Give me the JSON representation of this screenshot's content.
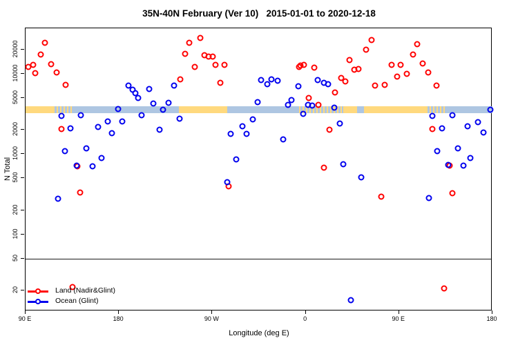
{
  "title": "35N-40N February (Ver 10)   2015-01-01 to 2020-12-18",
  "legend": {
    "items": [
      {
        "label": "Land (Nadir&Glint)",
        "color": "#FF0000"
      },
      {
        "label": "Ocean (Glint)",
        "color": "#0000EE"
      }
    ]
  },
  "chart_data": {
    "type": "scatter",
    "title": "35N-40N February (Ver 10)   2015-01-01 to 2020-12-18",
    "xlabel": "Longitude (deg E)",
    "ylabel": "N Total",
    "y_scale": "log",
    "y_axis": {
      "range": [
        11,
        37000
      ],
      "ticks": [
        20000,
        10000,
        5000,
        2000,
        1000,
        500,
        200,
        100,
        50,
        20
      ]
    },
    "x_axis": {
      "range_deg_east_continuous": [
        90,
        540
      ],
      "ticks": [
        {
          "deg": 90,
          "label": "90 E"
        },
        {
          "deg": 180,
          "label": "180"
        },
        {
          "deg": 270,
          "label": "90 W"
        },
        {
          "deg": 360,
          "label": "0"
        },
        {
          "deg": 450,
          "label": "90 E"
        },
        {
          "deg": 540,
          "label": "180"
        }
      ]
    },
    "grid": false,
    "legend_position": "bottom-left",
    "reference_line_value": 50,
    "band": {
      "description": "land/ocean strip along 35N-40N",
      "value_range": [
        3240,
        3980
      ],
      "land_color": "#FFD97E",
      "ocean_color": "#AEC6E2",
      "segments": [
        {
          "from": 90.0,
          "to": 118.0,
          "type": "land"
        },
        {
          "from": 118.0,
          "to": 136.0,
          "type": "mixed"
        },
        {
          "from": 136.0,
          "to": 238.0,
          "type": "ocean"
        },
        {
          "from": 238.0,
          "to": 284.7,
          "type": "land"
        },
        {
          "from": 284.7,
          "to": 351.3,
          "type": "ocean"
        },
        {
          "from": 351.3,
          "to": 396.0,
          "type": "mixed"
        },
        {
          "from": 396.0,
          "to": 409.3,
          "type": "land"
        },
        {
          "from": 409.3,
          "to": 416.0,
          "type": "ocean"
        },
        {
          "from": 416.0,
          "to": 477.3,
          "type": "land"
        },
        {
          "from": 477.3,
          "to": 494.7,
          "type": "mixed"
        },
        {
          "from": 494.7,
          "to": 540.0,
          "type": "ocean"
        }
      ]
    },
    "series": [
      {
        "name": "Land (Nadir&Glint)",
        "color": "#FF0000",
        "marker": "open-circle",
        "points": [
          [
            108.7,
            24200
          ],
          [
            104.7,
            17600
          ],
          [
            92.7,
            12300
          ],
          [
            97.3,
            13000
          ],
          [
            99.3,
            10200
          ],
          [
            114.7,
            13300
          ],
          [
            120.0,
            10400
          ],
          [
            128.7,
            7300
          ],
          [
            124.7,
            2070
          ],
          [
            140.0,
            710
          ],
          [
            142.7,
            332
          ],
          [
            135.3,
            22
          ],
          [
            239.3,
            8600
          ],
          [
            244.0,
            17900
          ],
          [
            248.0,
            24600
          ],
          [
            258.7,
            27800
          ],
          [
            262.7,
            17200
          ],
          [
            266.7,
            16300
          ],
          [
            270.7,
            16300
          ],
          [
            253.3,
            12300
          ],
          [
            273.3,
            13000
          ],
          [
            282.0,
            13000
          ],
          [
            278.0,
            7800
          ],
          [
            286.0,
            400
          ],
          [
            353.3,
            12100
          ],
          [
            354.7,
            12800
          ],
          [
            358.0,
            13000
          ],
          [
            368.0,
            11900
          ],
          [
            362.7,
            5020
          ],
          [
            372.0,
            4130
          ],
          [
            382.7,
            2030
          ],
          [
            377.3,
            680
          ],
          [
            388.0,
            5870
          ],
          [
            394.0,
            8900
          ],
          [
            398.0,
            8050
          ],
          [
            402.0,
            15000
          ],
          [
            406.7,
            11300
          ],
          [
            410.7,
            11500
          ],
          [
            418.0,
            19900
          ],
          [
            423.3,
            26300
          ],
          [
            426.7,
            7150
          ],
          [
            436.0,
            7300
          ],
          [
            432.7,
            294
          ],
          [
            442.7,
            13000
          ],
          [
            451.3,
            13000
          ],
          [
            448.0,
            9300
          ],
          [
            457.3,
            10100
          ],
          [
            463.3,
            17600
          ],
          [
            467.3,
            23400
          ],
          [
            472.7,
            13600
          ],
          [
            478.0,
            10400
          ],
          [
            486.0,
            7150
          ],
          [
            482.0,
            2070
          ],
          [
            498.7,
            720
          ],
          [
            501.3,
            326
          ],
          [
            493.3,
            21
          ]
        ]
      },
      {
        "name": "Ocean (Glint)",
        "color": "#0000EE",
        "marker": "open-circle",
        "points": [
          [
            121.3,
            278
          ],
          [
            124.7,
            3000
          ],
          [
            133.3,
            2110
          ],
          [
            128.0,
            1090
          ],
          [
            139.3,
            725
          ],
          [
            143.3,
            3070
          ],
          [
            148.7,
            1180
          ],
          [
            154.7,
            710
          ],
          [
            160.0,
            2190
          ],
          [
            163.3,
            890
          ],
          [
            169.3,
            2530
          ],
          [
            173.3,
            1840
          ],
          [
            179.3,
            3670
          ],
          [
            183.3,
            2530
          ],
          [
            189.3,
            7150
          ],
          [
            193.3,
            6350
          ],
          [
            196.0,
            5740
          ],
          [
            198.7,
            5020
          ],
          [
            202.0,
            3070
          ],
          [
            209.3,
            6500
          ],
          [
            213.3,
            4300
          ],
          [
            219.3,
            2030
          ],
          [
            222.7,
            3600
          ],
          [
            228.0,
            4360
          ],
          [
            233.3,
            7150
          ],
          [
            238.7,
            2780
          ],
          [
            284.7,
            450
          ],
          [
            288.0,
            1780
          ],
          [
            293.3,
            860
          ],
          [
            299.3,
            2230
          ],
          [
            302.7,
            1800
          ],
          [
            308.7,
            2700
          ],
          [
            314.0,
            4410
          ],
          [
            317.3,
            8400
          ],
          [
            322.7,
            7450
          ],
          [
            327.3,
            8550
          ],
          [
            332.7,
            8200
          ],
          [
            338.0,
            1530
          ],
          [
            342.7,
            4130
          ],
          [
            346.0,
            4710
          ],
          [
            352.7,
            7000
          ],
          [
            357.3,
            3180
          ],
          [
            362.0,
            4130
          ],
          [
            366.0,
            4050
          ],
          [
            371.3,
            8400
          ],
          [
            377.3,
            7800
          ],
          [
            381.3,
            7500
          ],
          [
            387.3,
            3820
          ],
          [
            392.7,
            2420
          ],
          [
            396.0,
            750
          ],
          [
            403.3,
            15
          ],
          [
            413.3,
            512
          ],
          [
            478.7,
            285
          ],
          [
            482.0,
            3010
          ],
          [
            486.7,
            1090
          ],
          [
            491.3,
            2110
          ],
          [
            497.3,
            730
          ],
          [
            501.3,
            3060
          ],
          [
            506.7,
            1190
          ],
          [
            512.0,
            715
          ],
          [
            516.0,
            2220
          ],
          [
            518.7,
            900
          ],
          [
            526.0,
            2490
          ],
          [
            531.3,
            1850
          ],
          [
            538.0,
            3560
          ]
        ]
      }
    ]
  }
}
